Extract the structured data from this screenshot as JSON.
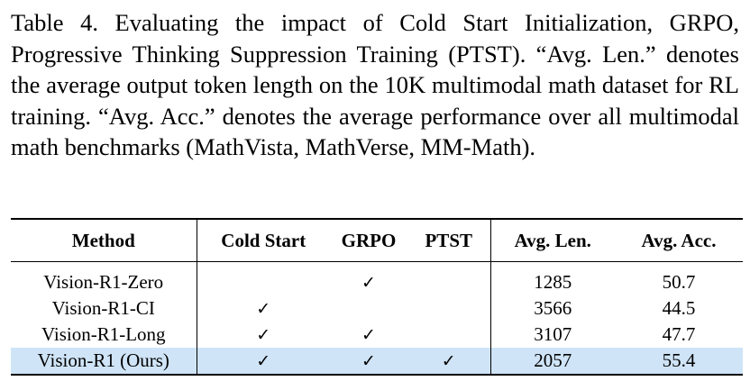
{
  "caption": "Table 4. Evaluating the impact of Cold Start Initialization, GRPO, Progressive Thinking Suppression Training (PTST). “Avg. Len.” denotes the average output token length on the 10K multimodal math dataset for RL training. “Avg. Acc.” denotes the average performance over all multimodal math benchmarks (MathVista, MathVerse, MM-Math).",
  "table": {
    "headers": [
      "Method",
      "Cold Start",
      "GRPO",
      "PTST",
      "Avg. Len.",
      "Avg. Acc."
    ],
    "check_symbol": "✓",
    "rows": [
      {
        "method": "Vision-R1-Zero",
        "cold_start": "",
        "grpo": "✓",
        "ptst": "",
        "avg_len": "1285",
        "avg_acc": "50.7"
      },
      {
        "method": "Vision-R1-CI",
        "cold_start": "✓",
        "grpo": "",
        "ptst": "",
        "avg_len": "3566",
        "avg_acc": "44.5"
      },
      {
        "method": "Vision-R1-Long",
        "cold_start": "✓",
        "grpo": "✓",
        "ptst": "",
        "avg_len": "3107",
        "avg_acc": "47.7"
      },
      {
        "method": "Vision-R1 (Ours)",
        "cold_start": "✓",
        "grpo": "✓",
        "ptst": "✓",
        "avg_len": "2057",
        "avg_acc": "55.4"
      }
    ],
    "highlight_color": "#cfe4f7"
  }
}
